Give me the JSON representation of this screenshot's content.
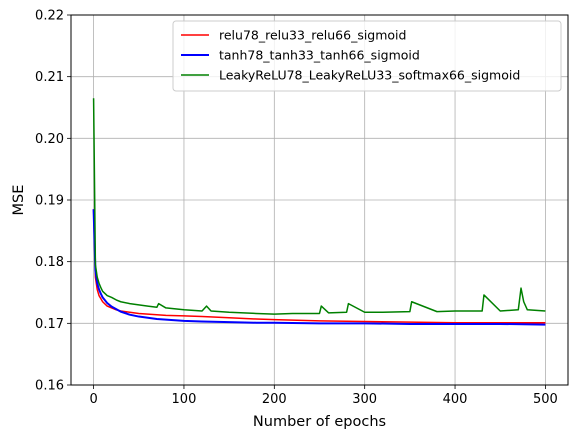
{
  "chart_data": {
    "type": "line",
    "title": "",
    "xlabel": "Number of epochs",
    "ylabel": "MSE",
    "xlim": [
      -25,
      525
    ],
    "ylim": [
      0.16,
      0.22
    ],
    "xticks": [
      0,
      100,
      200,
      300,
      400,
      500
    ],
    "yticks": [
      0.16,
      0.17,
      0.18,
      0.19,
      0.2,
      0.21,
      0.22
    ],
    "xtick_labels": [
      "0",
      "100",
      "200",
      "300",
      "400",
      "500"
    ],
    "ytick_labels": [
      "0.16",
      "0.17",
      "0.18",
      "0.19",
      "0.20",
      "0.21",
      "0.22"
    ],
    "grid": true,
    "legend_position": "top-right",
    "series": [
      {
        "name": "relu78_relu33_relu66_sigmoid",
        "color": "#ff0000",
        "x": [
          0,
          2,
          4,
          6,
          8,
          10,
          15,
          20,
          25,
          30,
          40,
          50,
          60,
          70,
          80,
          100,
          120,
          150,
          180,
          200,
          250,
          300,
          350,
          400,
          450,
          500
        ],
        "y": [
          0.1885,
          0.1775,
          0.1755,
          0.1745,
          0.174,
          0.1735,
          0.1728,
          0.1725,
          0.1722,
          0.172,
          0.1718,
          0.1716,
          0.1715,
          0.1714,
          0.1713,
          0.1712,
          0.1711,
          0.1709,
          0.1707,
          0.1706,
          0.1704,
          0.1703,
          0.1702,
          0.1701,
          0.1701,
          0.1701
        ]
      },
      {
        "name": "tanh78_tanh33_tanh66_sigmoid",
        "color": "#0000ff",
        "x": [
          0,
          2,
          4,
          6,
          8,
          10,
          15,
          20,
          25,
          30,
          40,
          50,
          60,
          70,
          80,
          100,
          120,
          150,
          180,
          200,
          250,
          300,
          350,
          400,
          450,
          500
        ],
        "y": [
          0.1885,
          0.1785,
          0.1765,
          0.1755,
          0.1748,
          0.1742,
          0.1733,
          0.1727,
          0.1723,
          0.1719,
          0.1714,
          0.1711,
          0.1709,
          0.1707,
          0.1706,
          0.1704,
          0.1703,
          0.1702,
          0.1701,
          0.1701,
          0.17,
          0.17,
          0.1699,
          0.1699,
          0.1699,
          0.1698
        ]
      },
      {
        "name": "LeakyReLU78_LeakyReLU33_softmax66_sigmoid",
        "color": "#008000",
        "x": [
          0,
          2,
          4,
          6,
          8,
          10,
          15,
          20,
          25,
          30,
          40,
          50,
          60,
          70,
          72,
          80,
          100,
          120,
          125,
          130,
          150,
          180,
          200,
          220,
          250,
          252,
          260,
          280,
          282,
          300,
          320,
          350,
          352,
          380,
          400,
          420,
          430,
          432,
          450,
          470,
          473,
          476,
          480,
          490,
          500
        ],
        "y": [
          0.2065,
          0.1795,
          0.1775,
          0.1765,
          0.1758,
          0.1752,
          0.1745,
          0.1742,
          0.1738,
          0.1735,
          0.1732,
          0.173,
          0.1728,
          0.1726,
          0.1732,
          0.1725,
          0.1722,
          0.172,
          0.1728,
          0.172,
          0.1718,
          0.1716,
          0.1715,
          0.1716,
          0.1716,
          0.1728,
          0.1717,
          0.1718,
          0.1732,
          0.1718,
          0.1718,
          0.1719,
          0.1735,
          0.1719,
          0.172,
          0.172,
          0.172,
          0.1746,
          0.172,
          0.1722,
          0.1757,
          0.1735,
          0.1722,
          0.1721,
          0.172
        ]
      }
    ]
  }
}
